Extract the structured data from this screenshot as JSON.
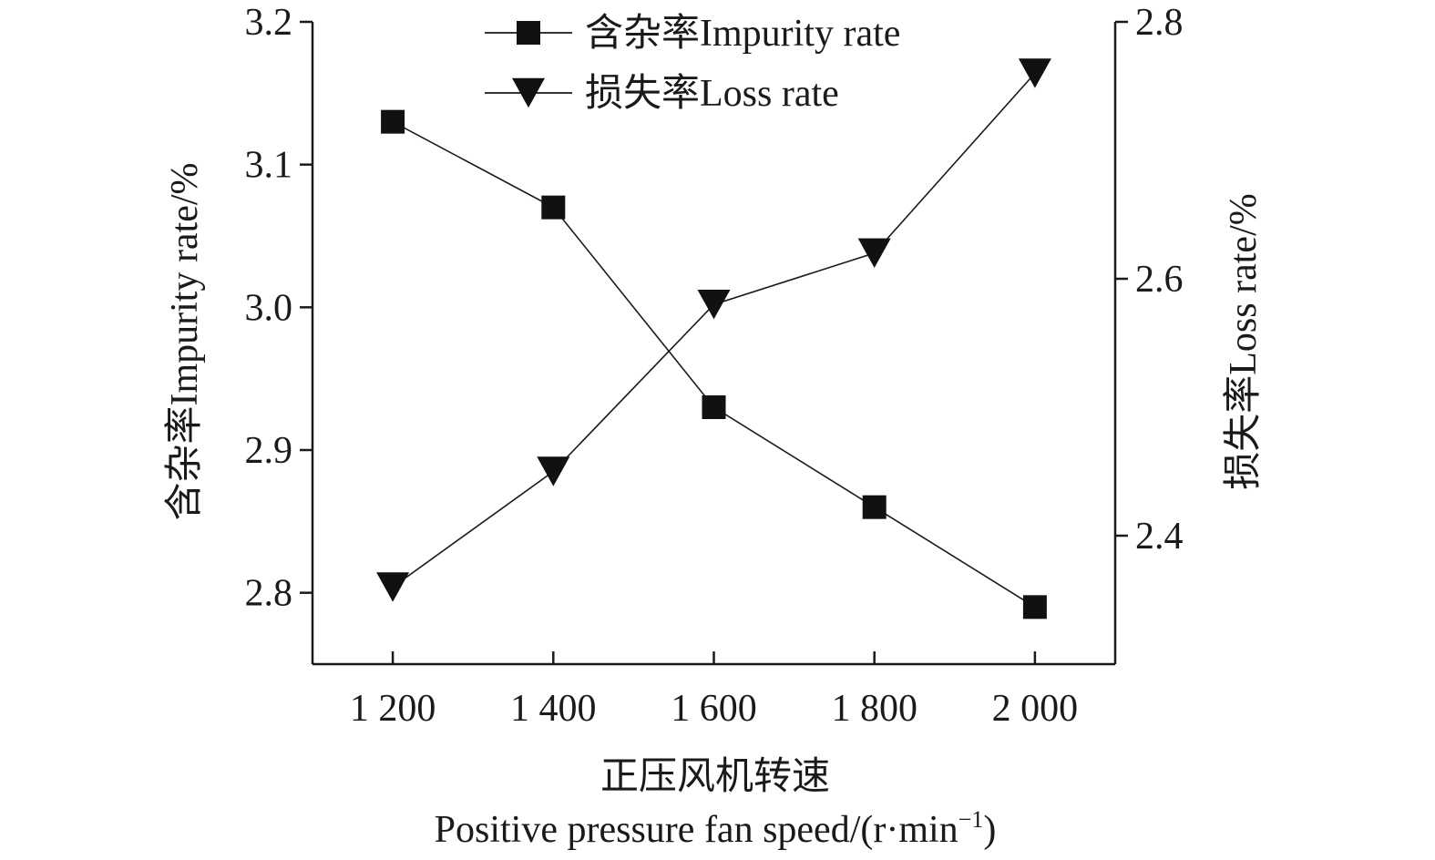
{
  "chart_data": {
    "type": "line",
    "title": "",
    "categories": [
      "1 200",
      "1 400",
      "1 600",
      "1 800",
      "2 000"
    ],
    "x": [
      1200,
      1400,
      1600,
      1800,
      2000
    ],
    "xlabel_cn": "正压风机转速",
    "xlabel_en": "Positive pressure fan speed/(r·min",
    "xlabel_sup": "−1",
    "xlabel_close": ")",
    "xlim": [
      1100,
      2100
    ],
    "y_left": {
      "label": "含杂率Impurity rate/%",
      "ylim": [
        2.75,
        3.2
      ],
      "ticks": [
        "2.8",
        "2.9",
        "3.0",
        "3.1",
        "3.2"
      ],
      "tick_values": [
        2.8,
        2.9,
        3.0,
        3.1,
        3.2
      ]
    },
    "y_right": {
      "label": "损失率Loss rate/%",
      "ylim": [
        2.3,
        2.8
      ],
      "ticks": [
        "2.4",
        "2.6",
        "2.8"
      ],
      "tick_values": [
        2.4,
        2.6,
        2.8
      ]
    },
    "series": [
      {
        "name": "含杂率Impurity rate",
        "axis": "left",
        "marker": "square",
        "values": [
          3.13,
          3.07,
          2.93,
          2.86,
          2.79
        ]
      },
      {
        "name": "损失率Loss rate",
        "axis": "right",
        "marker": "triangle-down",
        "values": [
          2.36,
          2.45,
          2.58,
          2.62,
          2.76
        ]
      }
    ],
    "legend_position": "top-center",
    "grid": false,
    "colors": {
      "line": "#1a1a1a",
      "marker": "#111111"
    }
  }
}
